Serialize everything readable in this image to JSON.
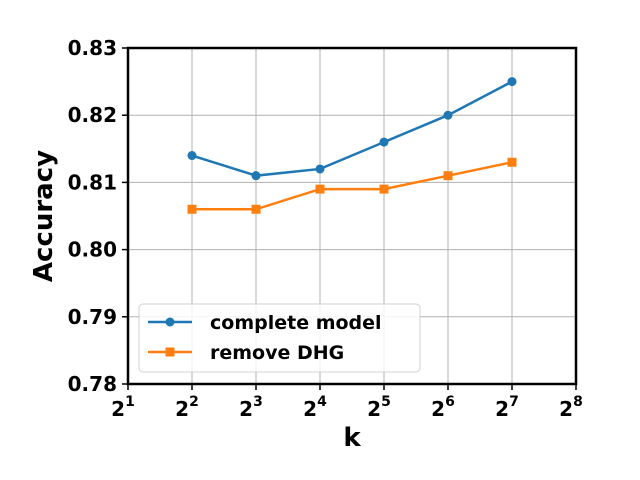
{
  "chart_data": {
    "type": "line",
    "title": "",
    "xlabel": "k",
    "ylabel": "Accuracy",
    "x_scale": "log2",
    "x_ticks": [
      {
        "exp": 1,
        "base": "2",
        "sup": "1"
      },
      {
        "exp": 2,
        "base": "2",
        "sup": "2"
      },
      {
        "exp": 3,
        "base": "2",
        "sup": "3"
      },
      {
        "exp": 4,
        "base": "2",
        "sup": "4"
      },
      {
        "exp": 5,
        "base": "2",
        "sup": "5"
      },
      {
        "exp": 6,
        "base": "2",
        "sup": "6"
      },
      {
        "exp": 7,
        "base": "2",
        "sup": "7"
      },
      {
        "exp": 8,
        "base": "2",
        "sup": "8"
      }
    ],
    "xlim": [
      2,
      256
    ],
    "ylim": [
      0.78,
      0.83
    ],
    "y_ticks": [
      "0.78",
      "0.79",
      "0.80",
      "0.81",
      "0.82",
      "0.83"
    ],
    "grid": true,
    "legend_position": "lower-left",
    "x": [
      4,
      8,
      16,
      32,
      64,
      128
    ],
    "series": [
      {
        "name": "complete model",
        "color": "#1f77b4",
        "marker": "circle",
        "values": [
          0.814,
          0.811,
          0.812,
          0.816,
          0.82,
          0.825
        ]
      },
      {
        "name": "remove DHG",
        "color": "#ff7f0e",
        "marker": "square",
        "values": [
          0.806,
          0.806,
          0.809,
          0.809,
          0.811,
          0.813
        ]
      }
    ]
  }
}
